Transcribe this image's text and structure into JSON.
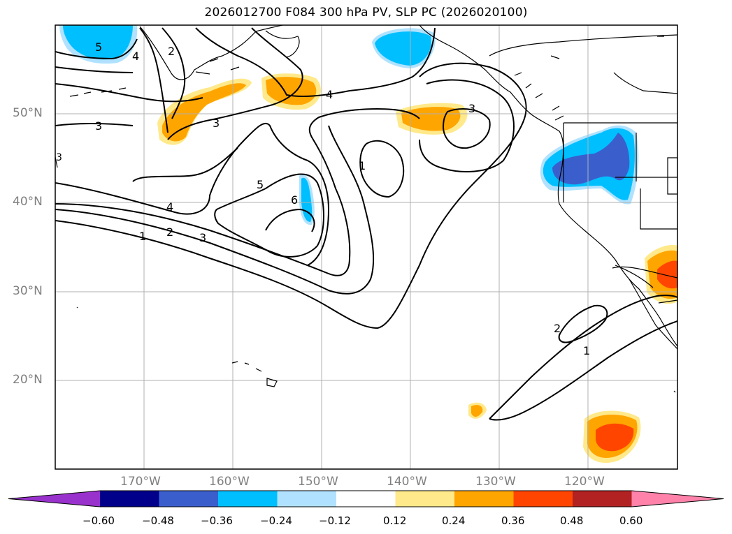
{
  "title": "2026012700 F084 300 hPa PV, SLP PC (2026020100)",
  "map": {
    "extent_lon": [
      -180,
      -110
    ],
    "extent_lat": [
      10,
      60
    ],
    "lat_labels": [
      "50°N",
      "40°N",
      "30°N",
      "20°N"
    ],
    "lon_labels": [
      "170°W",
      "160°W",
      "150°W",
      "140°W",
      "130°W",
      "120°W"
    ],
    "grid": true,
    "colors": {
      "land_outline": "#000000",
      "grid": "#b0b0b0",
      "contour": "#000000"
    },
    "contour_labels": [
      {
        "text": "5",
        "note": "nw"
      },
      {
        "text": "4",
        "note": "nw"
      },
      {
        "text": "2",
        "note": "n"
      },
      {
        "text": "3",
        "note": "w"
      },
      {
        "text": "3",
        "note": "center-n"
      },
      {
        "text": "4",
        "note": "north-center"
      },
      {
        "text": "3",
        "note": "ne"
      },
      {
        "text": "1",
        "note": "center"
      },
      {
        "text": "5",
        "note": "center"
      },
      {
        "text": "6",
        "note": "center"
      },
      {
        "text": "4",
        "note": "sw"
      },
      {
        "text": "2",
        "note": "sw"
      },
      {
        "text": "3",
        "note": "sw"
      },
      {
        "text": "1",
        "note": "sw"
      },
      {
        "text": "2",
        "note": "se"
      },
      {
        "text": "1",
        "note": "se"
      },
      {
        "text": "3",
        "note": "w-edge"
      }
    ]
  },
  "colorbar": {
    "ticks": [
      "−0.60",
      "−0.48",
      "−0.36",
      "−0.24",
      "−0.12",
      "0.12",
      "0.24",
      "0.36",
      "0.48",
      "0.60"
    ],
    "colors": [
      "#9932cc",
      "#00008b",
      "#3a5fcd",
      "#00bfff",
      "#b0e2ff",
      "#ffffff",
      "#ffe98a",
      "#ffa500",
      "#ff4500",
      "#b22222",
      "#ff82ab"
    ]
  }
}
